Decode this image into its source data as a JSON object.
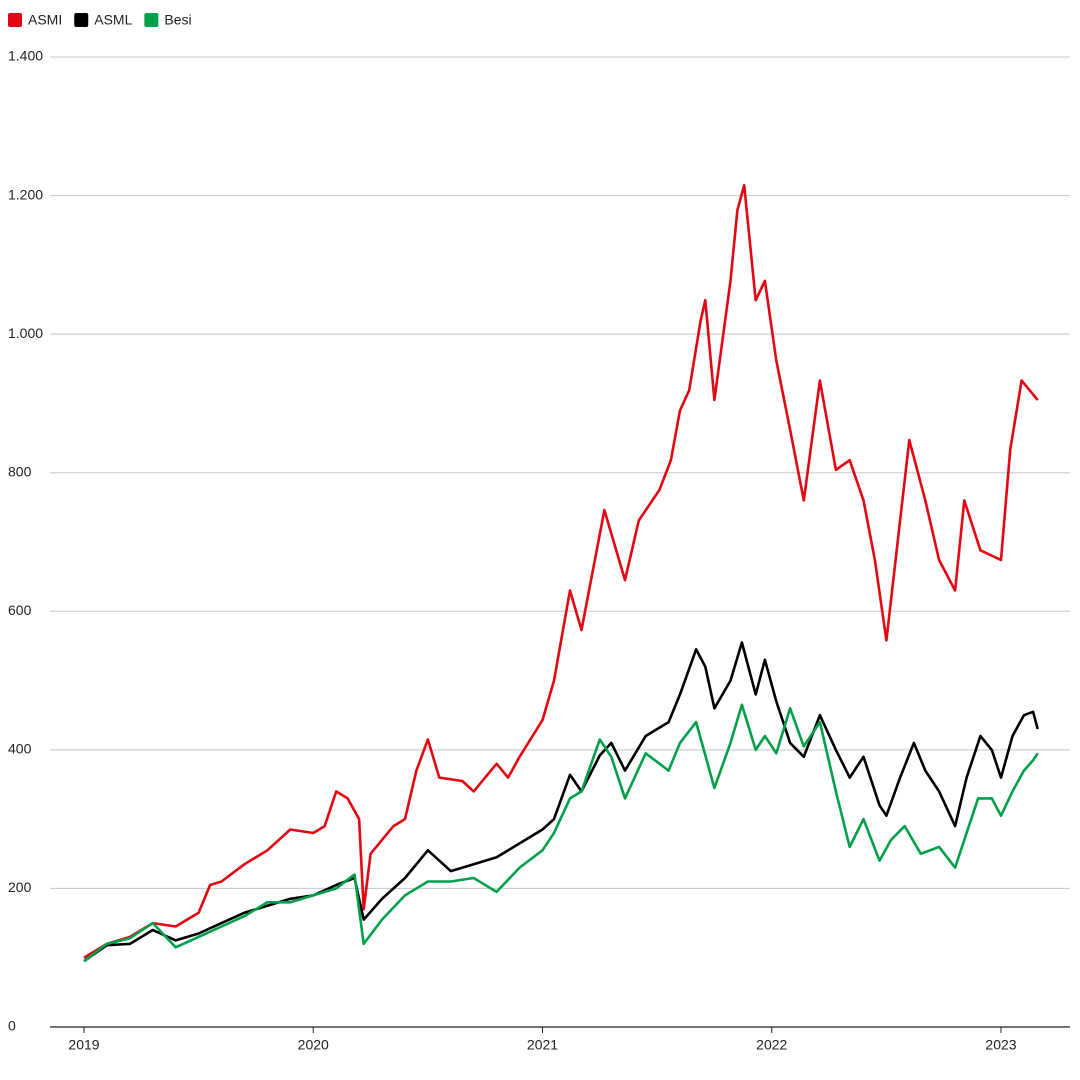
{
  "chart_data": {
    "type": "line",
    "xlim": [
      2018.85,
      2023.3
    ],
    "xticks": [
      2019,
      2020,
      2021,
      2022,
      2023
    ],
    "ylim": [
      0,
      1400
    ],
    "yticks": [
      0,
      200,
      400,
      600,
      800,
      {
        "value": 1000,
        "label": "1.000"
      },
      {
        "value": 1200,
        "label": "1.200"
      },
      {
        "value": 1400,
        "label": "1.400"
      }
    ],
    "grid": true,
    "legend": "top-left",
    "series": [
      {
        "name": "ASMI",
        "color": "#e30613",
        "x": [
          2019.0,
          2019.1,
          2019.2,
          2019.3,
          2019.4,
          2019.5,
          2019.55,
          2019.6,
          2019.7,
          2019.8,
          2019.9,
          2020.0,
          2020.05,
          2020.1,
          2020.15,
          2020.2,
          2020.22,
          2020.25,
          2020.3,
          2020.35,
          2020.4,
          2020.45,
          2020.5,
          2020.55,
          2020.65,
          2020.7,
          2020.8,
          2020.85,
          2020.9,
          2021.0,
          2021.05,
          2021.12,
          2021.17,
          2021.27,
          2021.36,
          2021.42,
          2021.51,
          2021.56,
          2021.6,
          2021.64,
          2021.69,
          2021.71,
          2021.75,
          2021.82,
          2021.85,
          2021.88,
          2021.93,
          2021.97,
          2022.02,
          2022.08,
          2022.14,
          2022.21,
          2022.28,
          2022.34,
          2022.4,
          2022.45,
          2022.5,
          2022.56,
          2022.6,
          2022.67,
          2022.73,
          2022.8,
          2022.84,
          2022.91,
          2023.0,
          2023.04,
          2023.09,
          2023.16
        ],
        "values": [
          100,
          120,
          130,
          150,
          145,
          165,
          205,
          210,
          235,
          255,
          285,
          280,
          290,
          340,
          330,
          300,
          170,
          250,
          270,
          290,
          300,
          370,
          415,
          360,
          355,
          340,
          380,
          360,
          390,
          443,
          500,
          630,
          573,
          746,
          645,
          731,
          775,
          818,
          890,
          919,
          1020,
          1049,
          905,
          1077,
          1179,
          1215,
          1049,
          1077,
          962,
          862,
          760,
          933,
          804,
          818,
          760,
          674,
          558,
          731,
          847,
          760,
          674,
          630,
          760,
          688,
          674,
          833,
          933,
          905
        ]
      },
      {
        "name": "ASML",
        "color": "#000000",
        "x": [
          2019.0,
          2019.1,
          2019.2,
          2019.3,
          2019.4,
          2019.5,
          2019.6,
          2019.7,
          2019.8,
          2019.9,
          2020.0,
          2020.1,
          2020.18,
          2020.22,
          2020.3,
          2020.4,
          2020.5,
          2020.6,
          2020.7,
          2020.8,
          2020.9,
          2021.0,
          2021.05,
          2021.12,
          2021.17,
          2021.25,
          2021.3,
          2021.36,
          2021.45,
          2021.55,
          2021.6,
          2021.67,
          2021.71,
          2021.75,
          2021.82,
          2021.87,
          2021.93,
          2021.97,
          2022.02,
          2022.08,
          2022.14,
          2022.21,
          2022.28,
          2022.34,
          2022.4,
          2022.47,
          2022.5,
          2022.56,
          2022.62,
          2022.67,
          2022.73,
          2022.8,
          2022.85,
          2022.91,
          2022.96,
          2023.0,
          2023.05,
          2023.1,
          2023.14,
          2023.16
        ],
        "values": [
          95,
          118,
          120,
          140,
          125,
          135,
          150,
          165,
          175,
          185,
          190,
          205,
          215,
          155,
          185,
          215,
          255,
          225,
          235,
          245,
          265,
          285,
          300,
          364,
          340,
          392,
          410,
          370,
          420,
          440,
          480,
          545,
          520,
          460,
          500,
          555,
          480,
          530,
          470,
          410,
          390,
          450,
          400,
          360,
          390,
          320,
          305,
          360,
          410,
          370,
          340,
          290,
          360,
          420,
          400,
          360,
          420,
          450,
          455,
          430
        ]
      },
      {
        "name": "Besi",
        "color": "#00a04b",
        "x": [
          2019.0,
          2019.1,
          2019.2,
          2019.3,
          2019.4,
          2019.5,
          2019.6,
          2019.7,
          2019.8,
          2019.9,
          2020.0,
          2020.1,
          2020.18,
          2020.22,
          2020.3,
          2020.4,
          2020.5,
          2020.6,
          2020.7,
          2020.8,
          2020.9,
          2021.0,
          2021.05,
          2021.12,
          2021.17,
          2021.25,
          2021.3,
          2021.36,
          2021.45,
          2021.55,
          2021.6,
          2021.67,
          2021.75,
          2021.82,
          2021.87,
          2021.93,
          2021.97,
          2022.02,
          2022.08,
          2022.14,
          2022.21,
          2022.28,
          2022.34,
          2022.4,
          2022.47,
          2022.52,
          2022.58,
          2022.65,
          2022.73,
          2022.8,
          2022.85,
          2022.9,
          2022.96,
          2023.0,
          2023.05,
          2023.1,
          2023.14,
          2023.16
        ],
        "values": [
          95,
          120,
          128,
          150,
          115,
          130,
          145,
          160,
          180,
          180,
          190,
          200,
          220,
          120,
          155,
          190,
          210,
          210,
          215,
          195,
          230,
          255,
          280,
          330,
          340,
          415,
          390,
          330,
          395,
          370,
          410,
          440,
          345,
          410,
          465,
          400,
          420,
          395,
          460,
          405,
          440,
          340,
          260,
          300,
          240,
          270,
          290,
          250,
          260,
          230,
          280,
          330,
          330,
          305,
          340,
          370,
          385,
          395
        ]
      }
    ]
  }
}
